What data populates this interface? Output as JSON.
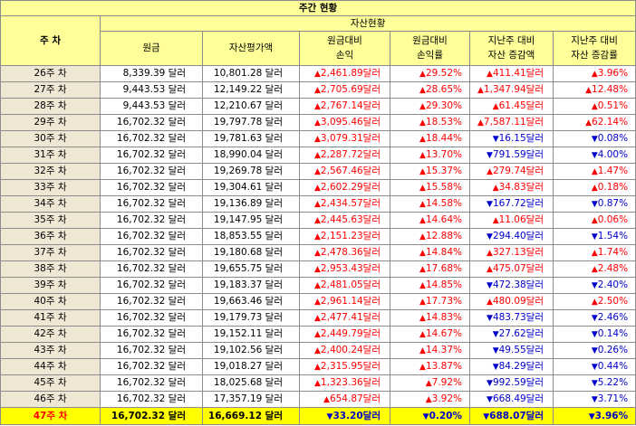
{
  "title": "주간 현황",
  "header": {
    "week": "주 차",
    "group": "자산현황",
    "col_principal": "원금",
    "col_asset": "자산평가액",
    "col_pl1": "원금대비",
    "col_pl2": "손익",
    "col_rate1": "원금대비",
    "col_rate2": "손익률",
    "col_chg1": "지난주 대비",
    "col_chg2": "자산 증감액",
    "col_chgr1": "지난주 대비",
    "col_chgr2": "자산 증감률"
  },
  "colors": {
    "up": "#ff0000",
    "down": "#0000cc",
    "header_bg": "#ffff99",
    "highlight_bg": "#ffff00"
  },
  "rows": [
    {
      "week": "26주 차",
      "principal": "8,339.39 달러",
      "asset": "10,801.28 달러",
      "pl_dir": "up",
      "pl": "2,461.89달러",
      "rate_dir": "up",
      "rate": "29.52%",
      "chg_dir": "up",
      "chg": "411.41달러",
      "chgr_dir": "up",
      "chgr": "3.96%"
    },
    {
      "week": "27주 차",
      "principal": "9,443.53 달러",
      "asset": "12,149.22 달러",
      "pl_dir": "up",
      "pl": "2,705.69달러",
      "rate_dir": "up",
      "rate": "28.65%",
      "chg_dir": "up",
      "chg": "1,347.94달러",
      "chgr_dir": "up",
      "chgr": "12.48%"
    },
    {
      "week": "28주 차",
      "principal": "9,443.53 달러",
      "asset": "12,210.67 달러",
      "pl_dir": "up",
      "pl": "2,767.14달러",
      "rate_dir": "up",
      "rate": "29.30%",
      "chg_dir": "up",
      "chg": "61.45달러",
      "chgr_dir": "up",
      "chgr": "0.51%"
    },
    {
      "week": "29주 차",
      "principal": "16,702.32 달러",
      "asset": "19,797.78 달러",
      "pl_dir": "up",
      "pl": "3,095.46달러",
      "rate_dir": "up",
      "rate": "18.53%",
      "chg_dir": "up",
      "chg": "7,587.11달러",
      "chgr_dir": "up",
      "chgr": "62.14%"
    },
    {
      "week": "30주 차",
      "principal": "16,702.32 달러",
      "asset": "19,781.63 달러",
      "pl_dir": "up",
      "pl": "3,079.31달러",
      "rate_dir": "up",
      "rate": "18.44%",
      "chg_dir": "down",
      "chg": "16.15달러",
      "chgr_dir": "down",
      "chgr": "0.08%"
    },
    {
      "week": "31주 차",
      "principal": "16,702.32 달러",
      "asset": "18,990.04 달러",
      "pl_dir": "up",
      "pl": "2,287.72달러",
      "rate_dir": "up",
      "rate": "13.70%",
      "chg_dir": "down",
      "chg": "791.59달러",
      "chgr_dir": "down",
      "chgr": "4.00%"
    },
    {
      "week": "32주 차",
      "principal": "16,702.32 달러",
      "asset": "19,269.78 달러",
      "pl_dir": "up",
      "pl": "2,567.46달러",
      "rate_dir": "up",
      "rate": "15.37%",
      "chg_dir": "up",
      "chg": "279.74달러",
      "chgr_dir": "up",
      "chgr": "1.47%"
    },
    {
      "week": "33주 차",
      "principal": "16,702.32 달러",
      "asset": "19,304.61 달러",
      "pl_dir": "up",
      "pl": "2,602.29달러",
      "rate_dir": "up",
      "rate": "15.58%",
      "chg_dir": "up",
      "chg": "34.83달러",
      "chgr_dir": "up",
      "chgr": "0.18%"
    },
    {
      "week": "34주 차",
      "principal": "16,702.32 달러",
      "asset": "19,136.89 달러",
      "pl_dir": "up",
      "pl": "2,434.57달러",
      "rate_dir": "up",
      "rate": "14.58%",
      "chg_dir": "down",
      "chg": "167.72달러",
      "chgr_dir": "down",
      "chgr": "0.87%"
    },
    {
      "week": "35주 차",
      "principal": "16,702.32 달러",
      "asset": "19,147.95 달러",
      "pl_dir": "up",
      "pl": "2,445.63달러",
      "rate_dir": "up",
      "rate": "14.64%",
      "chg_dir": "up",
      "chg": "11.06달러",
      "chgr_dir": "up",
      "chgr": "0.06%"
    },
    {
      "week": "36주 차",
      "principal": "16,702.32 달러",
      "asset": "18,853.55 달러",
      "pl_dir": "up",
      "pl": "2,151.23달러",
      "rate_dir": "up",
      "rate": "12.88%",
      "chg_dir": "down",
      "chg": "294.40달러",
      "chgr_dir": "down",
      "chgr": "1.54%"
    },
    {
      "week": "37주 차",
      "principal": "16,702.32 달러",
      "asset": "19,180.68 달러",
      "pl_dir": "up",
      "pl": "2,478.36달러",
      "rate_dir": "up",
      "rate": "14.84%",
      "chg_dir": "up",
      "chg": "327.13달러",
      "chgr_dir": "up",
      "chgr": "1.74%"
    },
    {
      "week": "38주 차",
      "principal": "16,702.32 달러",
      "asset": "19,655.75 달러",
      "pl_dir": "up",
      "pl": "2,953.43달러",
      "rate_dir": "up",
      "rate": "17.68%",
      "chg_dir": "up",
      "chg": "475.07달러",
      "chgr_dir": "up",
      "chgr": "2.48%"
    },
    {
      "week": "39주 차",
      "principal": "16,702.32 달러",
      "asset": "19,183.37 달러",
      "pl_dir": "up",
      "pl": "2,481.05달러",
      "rate_dir": "up",
      "rate": "14.85%",
      "chg_dir": "down",
      "chg": "472.38달러",
      "chgr_dir": "down",
      "chgr": "2.40%"
    },
    {
      "week": "40주 차",
      "principal": "16,702.32 달러",
      "asset": "19,663.46 달러",
      "pl_dir": "up",
      "pl": "2,961.14달러",
      "rate_dir": "up",
      "rate": "17.73%",
      "chg_dir": "up",
      "chg": "480.09달러",
      "chgr_dir": "up",
      "chgr": "2.50%"
    },
    {
      "week": "41주 차",
      "principal": "16,702.32 달러",
      "asset": "19,179.73 달러",
      "pl_dir": "up",
      "pl": "2,477.41달러",
      "rate_dir": "up",
      "rate": "14.83%",
      "chg_dir": "down",
      "chg": "483.73달러",
      "chgr_dir": "down",
      "chgr": "2.46%"
    },
    {
      "week": "42주 차",
      "principal": "16,702.32 달러",
      "asset": "19,152.11 달러",
      "pl_dir": "up",
      "pl": "2,449.79달러",
      "rate_dir": "up",
      "rate": "14.67%",
      "chg_dir": "down",
      "chg": "27.62달러",
      "chgr_dir": "down",
      "chgr": "0.14%"
    },
    {
      "week": "43주 차",
      "principal": "16,702.32 달러",
      "asset": "19,102.56 달러",
      "pl_dir": "up",
      "pl": "2,400.24달러",
      "rate_dir": "up",
      "rate": "14.37%",
      "chg_dir": "down",
      "chg": "49.55달러",
      "chgr_dir": "down",
      "chgr": "0.26%"
    },
    {
      "week": "44주 차",
      "principal": "16,702.32 달러",
      "asset": "19,018.27 달러",
      "pl_dir": "up",
      "pl": "2,315.95달러",
      "rate_dir": "up",
      "rate": "13.87%",
      "chg_dir": "down",
      "chg": "84.29달러",
      "chgr_dir": "down",
      "chgr": "0.44%"
    },
    {
      "week": "45주 차",
      "principal": "16,702.32 달러",
      "asset": "18,025.68 달러",
      "pl_dir": "up",
      "pl": "1,323.36달러",
      "rate_dir": "up",
      "rate": "7.92%",
      "chg_dir": "down",
      "chg": "992.59달러",
      "chgr_dir": "down",
      "chgr": "5.22%"
    },
    {
      "week": "46주 차",
      "principal": "16,702.32 달러",
      "asset": "17,357.19 달러",
      "pl_dir": "up",
      "pl": "654.87달러",
      "rate_dir": "up",
      "rate": "3.92%",
      "chg_dir": "down",
      "chg": "668.49달러",
      "chgr_dir": "down",
      "chgr": "3.71%"
    },
    {
      "week": "47주 차",
      "principal": "16,702.32 달러",
      "asset": "16,669.12 달러",
      "pl_dir": "down",
      "pl": "33.20달러",
      "rate_dir": "down",
      "rate": "0.20%",
      "chg_dir": "down",
      "chg": "688.07달러",
      "chgr_dir": "down",
      "chgr": "3.96%",
      "highlight": true
    }
  ]
}
